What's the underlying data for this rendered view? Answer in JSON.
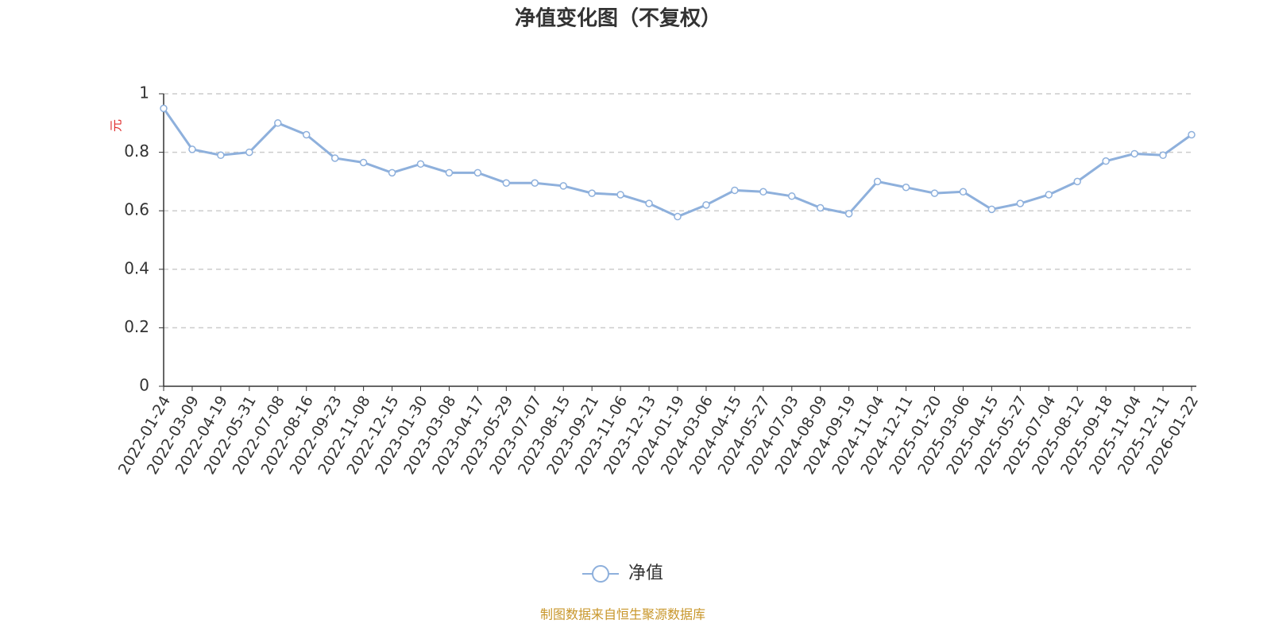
{
  "chart_data": {
    "type": "line",
    "title": "净值变化图（不复权）",
    "y_label": "元",
    "source": "制图数据来自恒生聚源数据库",
    "x": [
      "2022-01-24",
      "2022-03-09",
      "2022-04-19",
      "2022-05-31",
      "2022-07-08",
      "2022-08-16",
      "2022-09-23",
      "2022-11-08",
      "2022-12-15",
      "2023-01-30",
      "2023-03-08",
      "2023-04-17",
      "2023-05-29",
      "2023-07-07",
      "2023-08-15",
      "2023-09-21",
      "2023-11-06",
      "2023-12-13",
      "2024-01-19",
      "2024-03-06",
      "2024-04-15",
      "2024-05-27",
      "2024-07-03",
      "2024-08-09",
      "2024-09-19",
      "2024-11-04",
      "2024-12-11",
      "2025-01-20",
      "2025-03-06",
      "2025-04-15",
      "2025-05-27",
      "2025-07-04",
      "2025-08-12",
      "2025-09-18",
      "2025-11-04",
      "2025-12-11",
      "2026-01-22"
    ],
    "series": [
      {
        "name": "净值",
        "color": "#8eb0dc",
        "values": [
          0.95,
          0.81,
          0.79,
          0.8,
          0.9,
          0.86,
          0.78,
          0.765,
          0.73,
          0.76,
          0.73,
          0.73,
          0.695,
          0.695,
          0.685,
          0.66,
          0.655,
          0.625,
          0.58,
          0.62,
          0.67,
          0.665,
          0.65,
          0.61,
          0.59,
          0.7,
          0.68,
          0.66,
          0.665,
          0.605,
          0.625,
          0.655,
          0.7,
          0.77,
          0.795,
          0.79,
          0.86
        ]
      }
    ],
    "ylim": [
      0,
      1
    ],
    "yticks": [
      0,
      0.2,
      0.4,
      0.6,
      0.8,
      1
    ],
    "grid": true
  }
}
